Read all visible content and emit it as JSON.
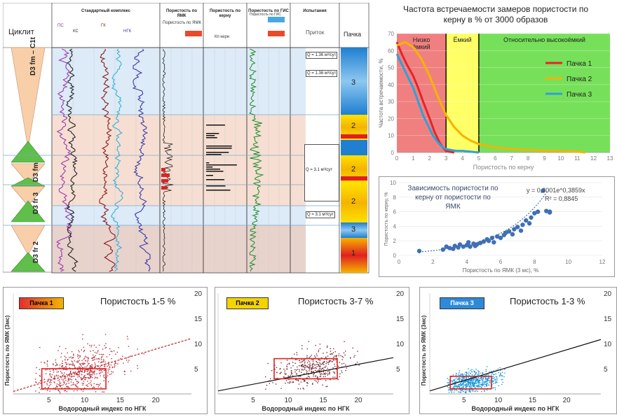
{
  "log": {
    "cycle_header": "Циклит",
    "column_headers": [
      "Стандартный комплекс",
      "Пористость по ЯМК",
      "Пористость по керну",
      "Пористость по ГИС",
      "Испытания"
    ],
    "pack_header": "Пачка",
    "inflow_header": "Приток",
    "sub_labels": [
      "ПС",
      "КС",
      "ГК",
      "НГК",
      "Пористость по ЯМК",
      "Кп керн",
      "Пористость по ГИС"
    ],
    "interval_labels": [
      "D3 fm – C1t",
      "D3 fm",
      "D3 fr 3",
      "D3 fr 2"
    ],
    "pack_labels": [
      "3",
      "2",
      "2",
      "2",
      "3",
      "1"
    ],
    "test_labels": [
      "Q = 1.36 м³/сут",
      "Q = 1.36 м³/сут",
      "Q = 3.1 м³/сут",
      "Q = 3.1 м³/сут"
    ]
  },
  "colors": {
    "pack1": "#e8222a",
    "pack2": "#f4b400",
    "pack3": "#2ea1d8",
    "zone_red": "#f08080",
    "zone_yellow": "#ffff66",
    "zone_green": "#77e05a",
    "scatter_blue": "#3f6fb5"
  },
  "chart_data": [
    {
      "type": "line",
      "title": "Частота встречаемости замеров пористости по керну в % от 3000 образов",
      "xlabel": "Пористость по керну",
      "ylabel": "Частота встречаемости, %",
      "xlim": [
        0,
        13
      ],
      "ylim": [
        0,
        70
      ],
      "x_ticks": [
        0,
        1,
        2,
        3,
        4,
        5,
        6,
        7,
        8,
        9,
        10,
        11,
        12,
        13
      ],
      "y_ticks": [
        0,
        10,
        20,
        30,
        40,
        50,
        60,
        70
      ],
      "zones": [
        {
          "label": "Низко ёмкий",
          "from": 0,
          "to": 3,
          "color": "red"
        },
        {
          "label": "Ёмкий",
          "from": 3,
          "to": 5,
          "color": "yellow"
        },
        {
          "label": "Относительно высокоёмкий",
          "from": 5,
          "to": 13,
          "color": "green"
        }
      ],
      "legend_position": "right",
      "series": [
        {
          "name": "Пачка 1",
          "color": "#e8222a",
          "x": [
            0,
            0.3,
            0.6,
            1,
            1.3,
            1.6,
            2,
            2.3,
            2.6,
            2.8,
            3,
            3.2,
            3.5
          ],
          "y": [
            65,
            58,
            52,
            45,
            38,
            30,
            20,
            12,
            6,
            3,
            1,
            0.5,
            0
          ]
        },
        {
          "name": "Пачка 2",
          "color": "#f4b400",
          "x": [
            0,
            0.5,
            1,
            1.5,
            2,
            2.5,
            3,
            3.5,
            4,
            4.5,
            5,
            5.5,
            6,
            7,
            8,
            9,
            10,
            11,
            11.5
          ],
          "y": [
            63,
            65,
            62,
            55,
            45,
            33,
            22,
            15,
            10,
            7,
            5,
            4,
            3,
            2,
            1.5,
            1,
            0.8,
            0.5,
            0
          ]
        },
        {
          "name": "Пачка 3",
          "color": "#2ea1d8",
          "x": [
            0,
            0.3,
            0.6,
            1,
            1.3,
            1.6,
            1.9,
            2.2,
            2.5,
            2.8,
            3,
            3.3,
            3.6,
            4,
            4.5,
            5
          ],
          "y": [
            58,
            52,
            46,
            38,
            30,
            22,
            16,
            10,
            6,
            3,
            2,
            1.5,
            1,
            1,
            0.5,
            0
          ]
        }
      ]
    },
    {
      "type": "scatter",
      "title": "Зависимость пористости по керну от пористости по ЯМК",
      "xlabel": "Пористость по ЯМК (3 мс), %",
      "ylabel": "Пористость по керну, %",
      "xlim": [
        0,
        12
      ],
      "ylim": [
        0,
        10
      ],
      "x_ticks": [
        0,
        2,
        4,
        6,
        8,
        10,
        12
      ],
      "y_ticks": [
        0,
        2,
        4,
        6,
        8,
        10
      ],
      "equation": "y = 0,3001e^0,3859x",
      "r2": "R² = 0,8845",
      "points": [
        [
          1.2,
          0.6
        ],
        [
          2.6,
          0.8
        ],
        [
          2.8,
          1.2
        ],
        [
          3,
          1
        ],
        [
          3.2,
          0.9
        ],
        [
          3.3,
          1.3
        ],
        [
          3.5,
          1.1
        ],
        [
          3.6,
          1.5
        ],
        [
          3.8,
          1.2
        ],
        [
          4,
          1.4
        ],
        [
          4.1,
          1.8
        ],
        [
          4.2,
          1.2
        ],
        [
          4.4,
          1.6
        ],
        [
          4.5,
          1.3
        ],
        [
          4.6,
          1.5
        ],
        [
          4.8,
          1.7
        ],
        [
          5,
          1.9
        ],
        [
          5.2,
          2.2
        ],
        [
          5.3,
          2
        ],
        [
          5.5,
          2.4
        ],
        [
          5.6,
          1.8
        ],
        [
          5.8,
          2.6
        ],
        [
          6,
          2.4
        ],
        [
          6.2,
          2.8
        ],
        [
          6.3,
          3.1
        ],
        [
          6.5,
          3.3
        ],
        [
          6.7,
          2.9
        ],
        [
          6.8,
          3.6
        ],
        [
          7,
          3.9
        ],
        [
          7.2,
          3.4
        ],
        [
          7.3,
          4.2
        ],
        [
          7.5,
          4.8
        ],
        [
          7.7,
          4.4
        ],
        [
          7.8,
          5.2
        ],
        [
          8,
          5.8
        ],
        [
          8.2,
          6
        ],
        [
          8.5,
          8.9
        ],
        [
          8.7,
          6.1
        ],
        [
          8.9,
          5.9
        ],
        [
          8.9,
          6.0
        ]
      ]
    },
    {
      "type": "scatter",
      "badge": "Пачка 1",
      "title": "Пористость 1-5 %",
      "xlabel": "Водородный индекс по НГК",
      "ylabel": "Пористость по ЯМК (3мс)",
      "xlim": [
        0,
        25
      ],
      "ylim": [
        0,
        20
      ],
      "x_ticks": [
        5,
        10,
        15,
        20
      ],
      "y_ticks": [
        5,
        10,
        15,
        20
      ],
      "trend": [
        [
          0,
          0.5
        ],
        [
          25,
          11
        ]
      ],
      "box": {
        "x": [
          4,
          13
        ],
        "y": [
          1,
          5
        ]
      },
      "cloud": {
        "cx": 9,
        "cy": 4.5,
        "sx": 3,
        "sy": 2.3,
        "slope": 0.35,
        "n": 650,
        "xmin": 3,
        "xmax": 21,
        "ymin": 0.2,
        "ymax": 13.5
      },
      "point_color": "#b8303a"
    },
    {
      "type": "scatter",
      "badge": "Пачка 2",
      "title": "Пористость 3-7 %",
      "xlabel": "Водородный индекс по НГК",
      "ylabel": "Пористость по ЯМК (3мс)",
      "xlim": [
        0,
        25
      ],
      "ylim": [
        0,
        20
      ],
      "x_ticks": [
        5,
        10,
        15,
        20
      ],
      "y_ticks": [
        5,
        10,
        15,
        20
      ],
      "trend": [
        [
          0,
          0.6
        ],
        [
          25,
          7.2
        ]
      ],
      "box": {
        "x": [
          8,
          17
        ],
        "y": [
          3,
          7
        ]
      },
      "cloud": {
        "cx": 13,
        "cy": 5,
        "sx": 2.8,
        "sy": 1.8,
        "slope": 0.25,
        "n": 420,
        "xmin": 6,
        "xmax": 22,
        "ymin": 1,
        "ymax": 11
      },
      "point_color": "#7a3038"
    },
    {
      "type": "scatter",
      "badge": "Пачка 3",
      "title": "Пористость 1-3 %",
      "xlabel": "Водородный индекс по НГК",
      "ylabel": "Пористость по ЯМК (3мс)",
      "xlim": [
        0,
        25
      ],
      "ylim": [
        0,
        20
      ],
      "x_ticks": [
        5,
        10,
        15,
        20
      ],
      "y_ticks": [
        5,
        10,
        15,
        20
      ],
      "trend": [
        [
          0,
          0.6
        ],
        [
          25,
          10.8
        ]
      ],
      "box": {
        "x": [
          3,
          9
        ],
        "y": [
          1,
          3.5
        ]
      },
      "cloud": {
        "cx": 6,
        "cy": 2.5,
        "sx": 2,
        "sy": 1.1,
        "slope": 0.2,
        "n": 650,
        "xmin": 2.5,
        "xmax": 13,
        "ymin": 0.3,
        "ymax": 6
      },
      "point_color": "#1e9ad8"
    }
  ]
}
